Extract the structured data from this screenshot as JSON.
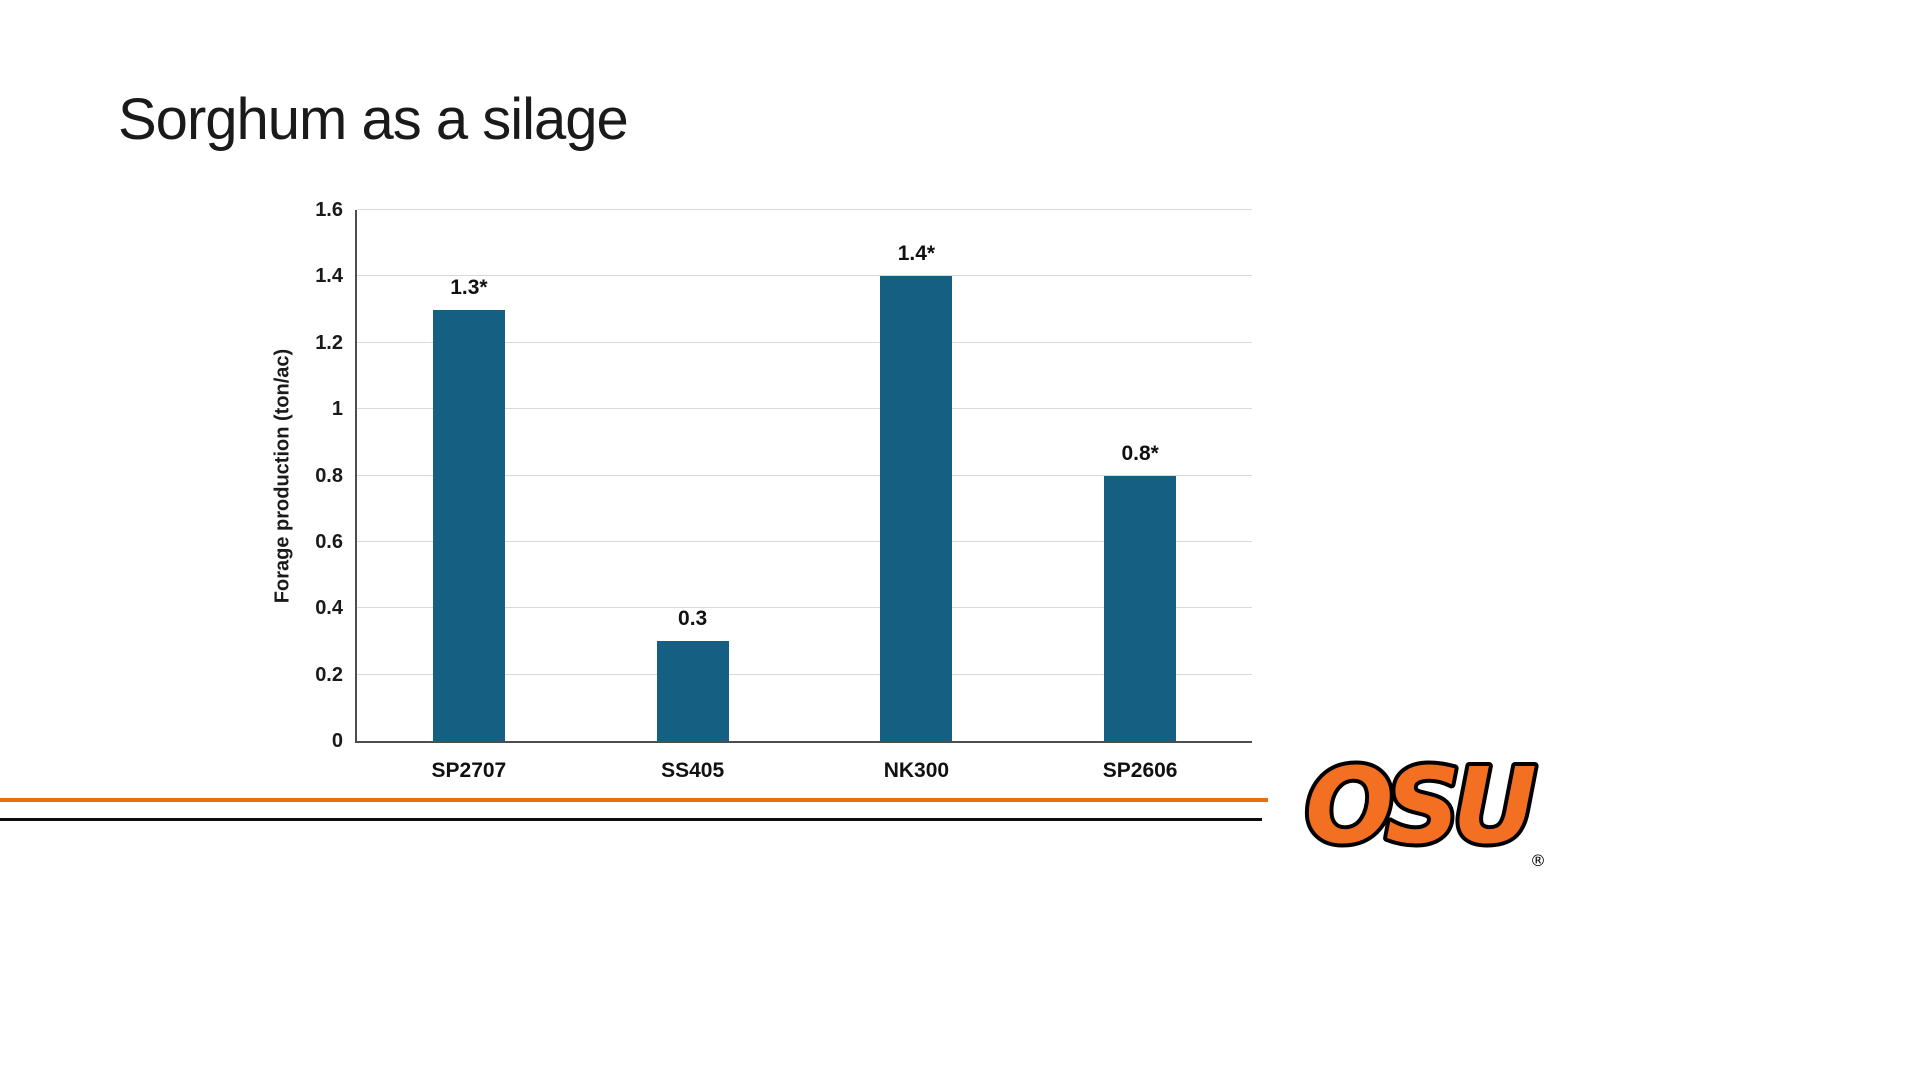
{
  "slide": {
    "title": "Sorghum as a silage"
  },
  "chart_data": {
    "type": "bar",
    "categories": [
      "SP2707",
      "SS405",
      "NK300",
      "SP2606"
    ],
    "values": [
      1.3,
      0.3,
      1.4,
      0.8
    ],
    "data_labels": [
      "1.3*",
      "0.3",
      "1.4*",
      "0.8*"
    ],
    "title": "",
    "xlabel": "",
    "ylabel": "Forage production (ton/ac)",
    "ylim": [
      0,
      1.6
    ],
    "yticks": [
      0,
      0.2,
      0.4,
      0.6,
      0.8,
      1,
      1.2,
      1.4,
      1.6
    ],
    "ytick_labels": [
      "0",
      "0.2",
      "0.4",
      "0.6",
      "0.8",
      "1",
      "1.2",
      "1.4",
      "1.6"
    ],
    "grid": true,
    "legend": false,
    "bar_color": "#156082"
  },
  "footer": {
    "line_orange_color": "#E8700A",
    "line_black_color": "#0d0d0d"
  },
  "logo": {
    "text": "OSU",
    "registered_mark": "®",
    "color": "#F36F21",
    "outline_color": "#000000"
  }
}
